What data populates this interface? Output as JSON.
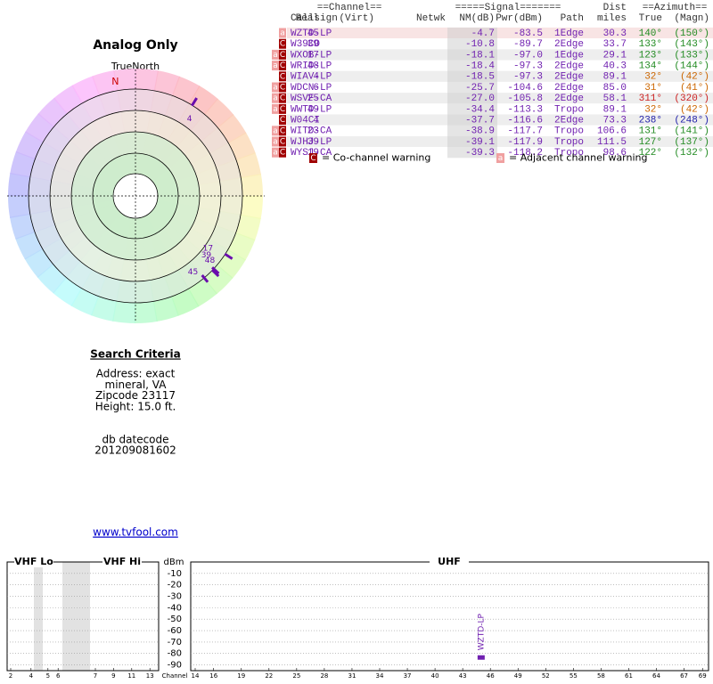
{
  "title": "Analog Only",
  "compass": {
    "true_north": "TrueNorth",
    "magnetic_north": "N"
  },
  "table": {
    "group_headers": {
      "channel": "==Channel==",
      "signal": "=====Signal=======",
      "dist": "Dist",
      "azimuth": "==Azimuth=="
    },
    "columns": [
      "Callsign",
      "Real",
      "(Virt)",
      "Netwk",
      "NM(dB)",
      "Pwr(dBm)",
      "Path",
      "miles",
      "True",
      "(Magn)"
    ],
    "rows": [
      {
        "flags": [
          "a"
        ],
        "callsign": "WZTD-LP",
        "real": 45,
        "nm": -4.7,
        "pwr": -83.5,
        "path": "1Edge",
        "dist": 30.3,
        "true": {
          "value": 140,
          "label": "140°"
        },
        "magn": {
          "value": 150,
          "label": "(150°)"
        },
        "az_color": "#228b22"
      },
      {
        "flags": [
          "C"
        ],
        "callsign": "W39CO",
        "real": 39,
        "nm": -10.8,
        "pwr": -89.7,
        "path": "2Edge",
        "dist": 33.7,
        "true": {
          "value": 133,
          "label": "133°"
        },
        "magn": {
          "value": 143,
          "label": "(143°)"
        },
        "az_color": "#228b22"
      },
      {
        "flags": [
          "a",
          "C"
        ],
        "callsign": "WXOB-LP",
        "real": 17,
        "nm": -18.1,
        "pwr": {
          "value": -97,
          "label": "-97.0"
        },
        "path": "1Edge",
        "dist": 29.1,
        "true": {
          "value": 123,
          "label": "123°"
        },
        "magn": {
          "value": 133,
          "label": "(133°)"
        },
        "az_color": "#228b22"
      },
      {
        "flags": [
          "a",
          "C"
        ],
        "callsign": "WRID-LP",
        "real": 48,
        "nm": -18.4,
        "pwr": -97.3,
        "path": "2Edge",
        "dist": 40.3,
        "true": {
          "value": 134,
          "label": "134°"
        },
        "magn": {
          "value": 144,
          "label": "(144°)"
        },
        "az_color": "#228b22"
      },
      {
        "flags": [
          "C"
        ],
        "callsign": "WIAV-LP",
        "real": 4,
        "nm": -18.5,
        "pwr": -97.3,
        "path": "2Edge",
        "dist": 89.1,
        "true": {
          "value": 32,
          "label": "32°"
        },
        "magn": {
          "value": 42,
          "label": "(42°)"
        },
        "az_color": "#cc6600"
      },
      {
        "flags": [
          "a",
          "C"
        ],
        "callsign": "WDCN-LP",
        "real": 6,
        "nm": -25.7,
        "pwr": -104.6,
        "path": "2Edge",
        "dist": {
          "value": 85,
          "label": "85.0"
        },
        "true": {
          "value": 31,
          "label": "31°"
        },
        "magn": {
          "value": 41,
          "label": "(41°)"
        },
        "az_color": "#cc6600"
      },
      {
        "flags": [
          "a",
          "C"
        ],
        "callsign": "WSVF-CA",
        "real": 25,
        "nm": {
          "value": -27,
          "label": "-27.0"
        },
        "pwr": -105.8,
        "path": "2Edge",
        "dist": 58.1,
        "true": {
          "value": 311,
          "label": "311°"
        },
        "magn": {
          "value": 320,
          "label": "(320°)"
        },
        "az_color": "#cc2222"
      },
      {
        "flags": [
          "a",
          "C"
        ],
        "callsign": "WWTD-LP",
        "real": 49,
        "nm": -34.4,
        "pwr": -113.3,
        "path": "Tropo",
        "dist": 89.1,
        "true": {
          "value": 32,
          "label": "32°"
        },
        "magn": {
          "value": 42,
          "label": "(42°)"
        },
        "az_color": "#cc6600"
      },
      {
        "flags": [
          "C"
        ],
        "callsign": "W04CI",
        "real": 4,
        "nm": -37.7,
        "pwr": -116.6,
        "path": "2Edge",
        "dist": 73.3,
        "true": {
          "value": 238,
          "label": "238°"
        },
        "magn": {
          "value": 248,
          "label": "(248°)"
        },
        "az_color": "#2222aa"
      },
      {
        "flags": [
          "a",
          "C"
        ],
        "callsign": "WITD-CA",
        "real": 23,
        "nm": -38.9,
        "pwr": -117.7,
        "path": "Tropo",
        "dist": 106.6,
        "true": {
          "value": 131,
          "label": "131°"
        },
        "magn": {
          "value": 141,
          "label": "(141°)"
        },
        "az_color": "#228b22"
      },
      {
        "flags": [
          "a",
          "C"
        ],
        "callsign": "WJHJ-LP",
        "real": 39,
        "nm": -39.1,
        "pwr": -117.9,
        "path": "Tropo",
        "dist": 111.5,
        "true": {
          "value": 127,
          "label": "127°"
        },
        "magn": {
          "value": 137,
          "label": "(137°)"
        },
        "az_color": "#228b22"
      },
      {
        "flags": [
          "a",
          "C"
        ],
        "callsign": "WYSJ-CA",
        "real": 19,
        "nm": -39.3,
        "pwr": -118.2,
        "path": "Tropo",
        "dist": 98.6,
        "true": {
          "value": 122,
          "label": "122°"
        },
        "magn": {
          "value": 132,
          "label": "(132°)"
        },
        "az_color": "#228b22"
      }
    ]
  },
  "legend": [
    {
      "symbol": "C",
      "text": "= Co-channel warning",
      "color": "#a00000"
    },
    {
      "symbol": "a",
      "text": "= Adjacent channel warning",
      "color": "#f0a0a0"
    }
  ],
  "search": {
    "heading": "Search Criteria",
    "lines": [
      "Address: exact",
      "mineral, VA",
      "Zipcode 23117",
      "Height: 15.0 ft."
    ],
    "datecode_label": "db datecode",
    "datecode": "201209081602",
    "link": "www.tvfool.com"
  },
  "spectrum": {
    "sections": {
      "vhf_lo": "VHF Lo",
      "vhf_hi": "VHF Hi",
      "uhf": "UHF"
    },
    "y_label": "dBm",
    "x_label": "Channel",
    "ylim": [
      -95,
      0
    ],
    "yticks": [
      -10,
      -20,
      -30,
      -40,
      -50,
      -60,
      -70,
      -80,
      -90
    ],
    "vhf_lo_ticks": [
      2,
      4,
      5,
      6
    ],
    "vhf_hi_ticks": [
      7,
      9,
      11,
      13
    ],
    "uhf_ticks": [
      14,
      16,
      19,
      22,
      25,
      28,
      31,
      34,
      37,
      40,
      43,
      46,
      49,
      52,
      55,
      58,
      61,
      64,
      67,
      69
    ]
  }
}
